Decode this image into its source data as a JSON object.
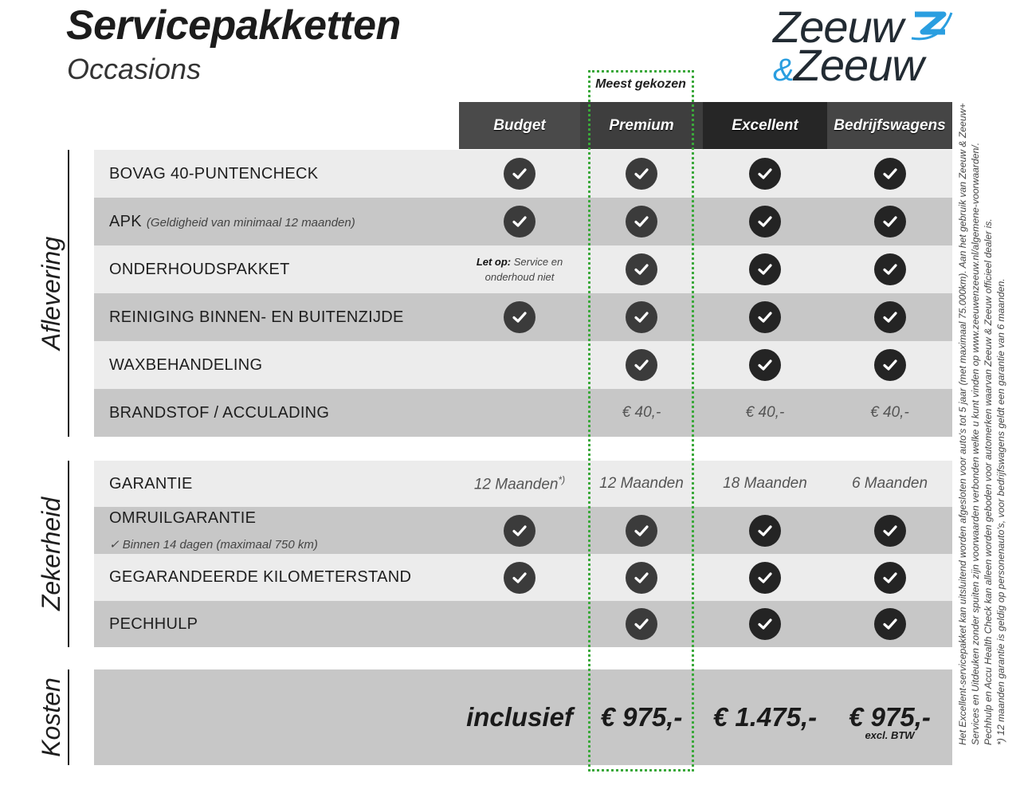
{
  "header": {
    "title": "Servicepakketten",
    "subtitle": "Occasions"
  },
  "logo": {
    "line1": "Zeeuw",
    "amp": "&",
    "line2": "Zeeuw",
    "accent": "#2a9ee0"
  },
  "highlight": {
    "label": "Meest gekozen",
    "color": "#3aa83a"
  },
  "columns": [
    {
      "label": "Budget",
      "bg": "#4a4a4a"
    },
    {
      "label": "Premium",
      "bg": "#3e3e3e"
    },
    {
      "label": "Excellent",
      "bg": "#262626"
    },
    {
      "label": "Bedrijfswagens",
      "bg": "#454545"
    }
  ],
  "sections": [
    {
      "label": "Aflevering",
      "rows": [
        {
          "label": "BOVAG 40-PUNTENCHECK",
          "cells": [
            {
              "type": "check"
            },
            {
              "type": "check"
            },
            {
              "type": "check"
            },
            {
              "type": "check"
            }
          ]
        },
        {
          "label": "APK",
          "sub": "(Geldigheid van minimaal 12 maanden)",
          "cells": [
            {
              "type": "check"
            },
            {
              "type": "check"
            },
            {
              "type": "check"
            },
            {
              "type": "check"
            }
          ]
        },
        {
          "label": "ONDERHOUDSPAKKET",
          "cells": [
            {
              "type": "note",
              "bold": "Let op:",
              "text": " Service en onderhoud niet"
            },
            {
              "type": "check"
            },
            {
              "type": "check"
            },
            {
              "type": "check"
            }
          ]
        },
        {
          "label": "REINIGING BINNEN- EN BUITENZIJDE",
          "cells": [
            {
              "type": "check"
            },
            {
              "type": "check"
            },
            {
              "type": "check"
            },
            {
              "type": "check"
            }
          ]
        },
        {
          "label": "WAXBEHANDELING",
          "cells": [
            {
              "type": "empty"
            },
            {
              "type": "check"
            },
            {
              "type": "check"
            },
            {
              "type": "check"
            }
          ]
        },
        {
          "label": "BRANDSTOF / ACCULADING",
          "cells": [
            {
              "type": "empty"
            },
            {
              "type": "text",
              "text": "€ 40,-"
            },
            {
              "type": "text",
              "text": "€ 40,-"
            },
            {
              "type": "text",
              "text": "€ 40,-"
            }
          ]
        }
      ]
    },
    {
      "label": "Zekerheid",
      "rows": [
        {
          "label": "GARANTIE",
          "cells": [
            {
              "type": "text",
              "text": "12 Maanden",
              "sup": "*)"
            },
            {
              "type": "text",
              "text": "12 Maanden"
            },
            {
              "type": "text",
              "text": "18 Maanden"
            },
            {
              "type": "text",
              "text": "6 Maanden"
            }
          ]
        },
        {
          "label": "OMRUILGARANTIE",
          "sub2": "✓   Binnen 14 dagen (maximaal 750 km)",
          "cells": [
            {
              "type": "check"
            },
            {
              "type": "check"
            },
            {
              "type": "check"
            },
            {
              "type": "check"
            }
          ]
        },
        {
          "label": "GEGARANDEERDE KILOMETERSTAND",
          "cells": [
            {
              "type": "check"
            },
            {
              "type": "check"
            },
            {
              "type": "check"
            },
            {
              "type": "check"
            }
          ]
        },
        {
          "label": "PECHHULP",
          "cells": [
            {
              "type": "empty"
            },
            {
              "type": "check"
            },
            {
              "type": "check"
            },
            {
              "type": "check"
            }
          ]
        }
      ]
    },
    {
      "label": "Kosten",
      "rows": [
        {
          "label": "",
          "cells": [
            {
              "type": "price",
              "text": "inclusief"
            },
            {
              "type": "price",
              "text": "€ 975,-"
            },
            {
              "type": "price",
              "text": "€ 1.475,-"
            },
            {
              "type": "price",
              "text": "€ 975,-",
              "sub": "excl. BTW"
            }
          ]
        }
      ]
    }
  ],
  "footnotes": [
    "Het Excellent-servicepakket kan uitsluitend worden afgesloten voor auto's tot 5 jaar (met maximaal 75.000km). Aan het gebruik van Zeeuw & Zeeuw+",
    "Services en Uitdeuken zonder spuiten zijn voorwaarden verbonden welke u kunt vinden op www.zeeuwenzeeuw.nl/algemene-voorwaarden/.",
    "Pechhulp en Accu Health Check kan alleen worden geboden voor automerken waarvan Zeeuw & Zeeuw officieel dealer is.",
    "*) 12 maanden garantie is geldig op personenauto's, voor bedrijfswagens geldt een garantie van 6 maanden."
  ]
}
